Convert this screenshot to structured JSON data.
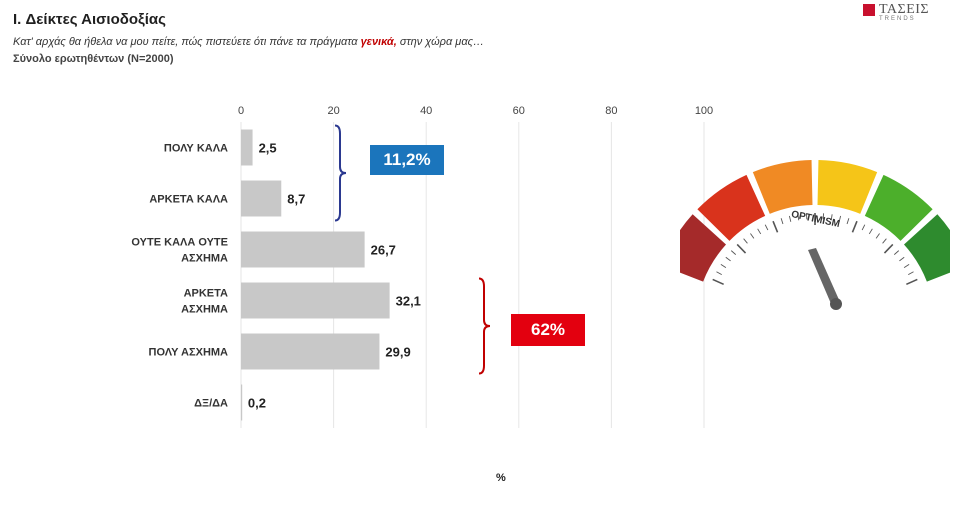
{
  "header": {
    "title": "I. Δείκτες Αισιοδοξίας",
    "subtitle_before": "Κατ' αρχάς θα ήθελα να μου πείτε, πώς πιστεύετε ότι πάνε τα πράγματα ",
    "subtitle_emph": "γενικά,",
    "subtitle_after": " στην χώρα μας…",
    "sample": "Σύνολο ερωτηθέντων (N=2000)"
  },
  "logo": {
    "name": "ΤΑΣΕΙΣ",
    "sub": "TRENDS",
    "color": "#c8102e"
  },
  "badges": {
    "positive": "11,2%",
    "negative": "62%"
  },
  "unit_label": "%",
  "gauge": {
    "label": "OPTIMISM"
  },
  "colors": {
    "bar": "#c8c8c8",
    "bracket_blue": "#2b3990",
    "bracket_red": "#c00000",
    "grid": "#e6e6e6",
    "badge_blue": "#1b75bc",
    "badge_red": "#e3000f"
  },
  "chart_data": {
    "type": "bar",
    "orientation": "horizontal",
    "categories": [
      [
        "ΠΟΛΥ ΚΑΛΑ"
      ],
      [
        "ΑΡΚΕΤΑ ΚΑΛΑ"
      ],
      [
        "ΟΥΤΕ ΚΑΛΑ ΟΥΤΕ",
        "ΑΣΧΗΜΑ"
      ],
      [
        "ΑΡΚΕΤΑ",
        "ΑΣΧΗΜΑ"
      ],
      [
        "ΠΟΛΥ ΑΣΧΗΜΑ"
      ],
      [
        "ΔΞ/ΔΑ"
      ]
    ],
    "values": [
      2.5,
      8.7,
      26.7,
      32.1,
      29.9,
      0.2
    ],
    "value_labels": [
      "2,5",
      "8,7",
      "26,7",
      "32,1",
      "29,9",
      "0,2"
    ],
    "xlim": [
      0,
      100
    ],
    "xticks": [
      0,
      20,
      40,
      60,
      80,
      100
    ],
    "xlabel": "%",
    "grid": true
  }
}
